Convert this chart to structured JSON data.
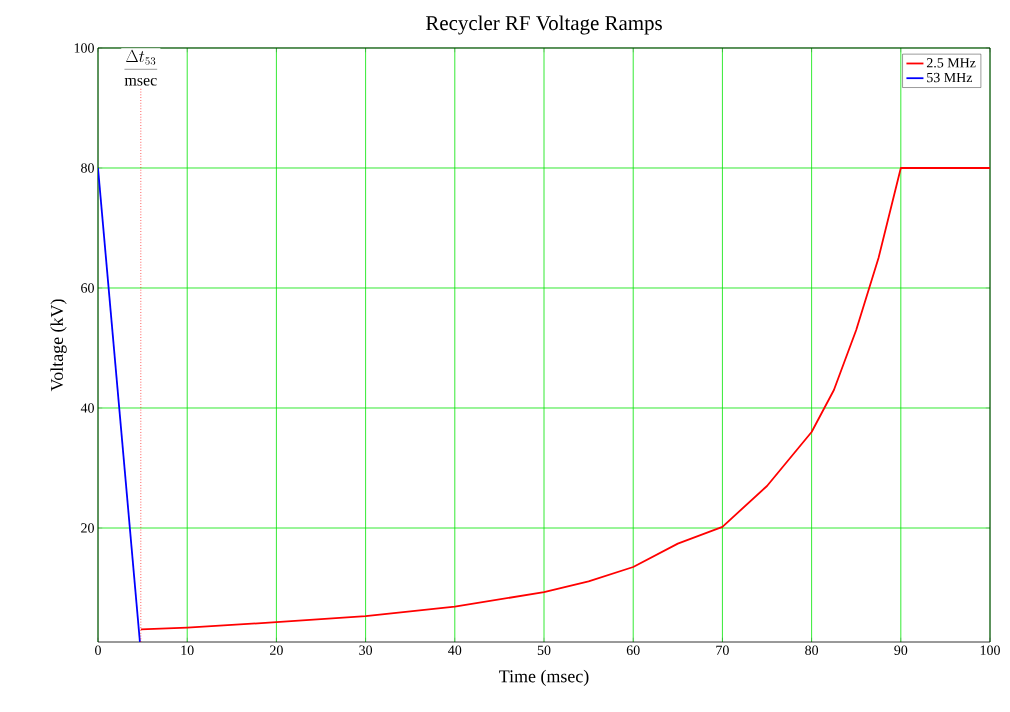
{
  "chart_data": {
    "type": "line",
    "title": "Recycler RF Voltage Ramps",
    "xlabel": "Time (msec)",
    "ylabel": "Voltage (kV)",
    "xlim": [
      0,
      100
    ],
    "ylim": [
      1,
      100
    ],
    "xticks": [
      0,
      10,
      20,
      30,
      40,
      50,
      60,
      70,
      80,
      90,
      100
    ],
    "yticks": [
      20,
      40,
      60,
      80,
      100
    ],
    "grid": true,
    "legend": "top right",
    "marker": "none",
    "line_style": "solid",
    "ref_lines": [
      {
        "axis": "x",
        "value": 4.8,
        "label": "\\frac{\\Delta t_{53}}{\\mathrm{msec}}",
        "color": "#ff0000",
        "line_style": "dotted"
      }
    ],
    "series": [
      {
        "name": "2.5 MHz",
        "color": "#ff0000",
        "x": [
          4.8,
          10,
          20,
          30,
          40,
          50,
          55,
          60,
          65,
          70,
          75,
          80,
          82.5,
          85,
          87.5,
          90,
          100
        ],
        "values": [
          3.1,
          3.4,
          4.3,
          5.3,
          6.9,
          9.3,
          11.1,
          13.5,
          17.4,
          20.2,
          27,
          36,
          43,
          53,
          65,
          80,
          80
        ]
      },
      {
        "name": "53 MHz",
        "color": "#0000ff",
        "x": [
          0,
          4.7
        ],
        "values": [
          80,
          1
        ]
      }
    ]
  }
}
